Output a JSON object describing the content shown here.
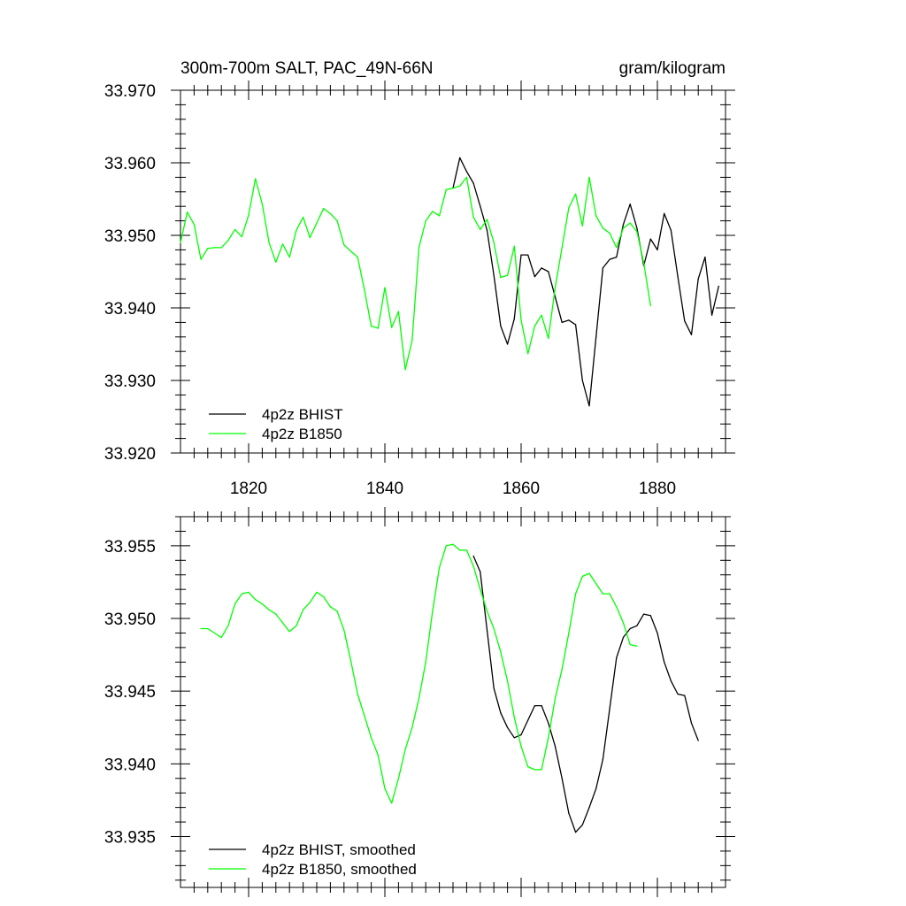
{
  "figure": {
    "title_left": "300m-700m SALT, PAC_49N-66N",
    "title_right": "gram/kilogram"
  },
  "chart_data": [
    {
      "type": "line",
      "xlim": [
        1810,
        1890
      ],
      "ylim": [
        33.92,
        33.97
      ],
      "x_ticks": [
        1820,
        1840,
        1860,
        1880
      ],
      "y_ticks": [
        33.92,
        33.93,
        33.94,
        33.95,
        33.96,
        33.97
      ],
      "x_tick_labels": [
        "1820",
        "1840",
        "1860",
        "1880"
      ],
      "y_tick_labels": [
        "33.920",
        "33.930",
        "33.940",
        "33.950",
        "33.960",
        "33.970"
      ],
      "grid": false,
      "legend_position": "bottom-left",
      "series": [
        {
          "name": "4p2z BHIST",
          "color": "#000000",
          "x": [
            1850,
            1851,
            1852,
            1853,
            1854,
            1855,
            1856,
            1857,
            1858,
            1859,
            1860,
            1861,
            1862,
            1863,
            1864,
            1865,
            1866,
            1867,
            1868,
            1869,
            1870,
            1871,
            1872,
            1873,
            1874,
            1875,
            1876,
            1877,
            1878,
            1879,
            1880,
            1881,
            1882,
            1883,
            1884,
            1885,
            1886,
            1887,
            1888,
            1889
          ],
          "y": [
            33.9565,
            33.9607,
            33.9588,
            33.9572,
            33.954,
            33.9507,
            33.9445,
            33.9375,
            33.935,
            33.9385,
            33.9473,
            33.9473,
            33.9443,
            33.9455,
            33.945,
            33.9415,
            33.938,
            33.9383,
            33.9377,
            33.93,
            33.9265,
            33.936,
            33.9455,
            33.9467,
            33.947,
            33.9515,
            33.9543,
            33.951,
            33.9458,
            33.9495,
            33.948,
            33.953,
            33.9507,
            33.9443,
            33.9382,
            33.9363,
            33.944,
            33.947,
            33.939,
            33.943
          ]
        },
        {
          "name": "4p2z B1850",
          "color": "#00ff00",
          "x": [
            1810,
            1811,
            1812,
            1813,
            1814,
            1815,
            1816,
            1817,
            1818,
            1819,
            1820,
            1821,
            1822,
            1823,
            1824,
            1825,
            1826,
            1827,
            1828,
            1829,
            1830,
            1831,
            1832,
            1833,
            1834,
            1835,
            1836,
            1837,
            1838,
            1839,
            1840,
            1841,
            1842,
            1843,
            1844,
            1845,
            1846,
            1847,
            1848,
            1849,
            1850,
            1851,
            1852,
            1853,
            1854,
            1855,
            1856,
            1857,
            1858,
            1859,
            1860,
            1861,
            1862,
            1863,
            1864,
            1865,
            1866,
            1867,
            1868,
            1869,
            1870,
            1871,
            1872,
            1873,
            1874,
            1875,
            1876,
            1877,
            1878,
            1879
          ],
          "y": [
            33.949,
            33.9532,
            33.9515,
            33.9467,
            33.9482,
            33.9483,
            33.9483,
            33.9493,
            33.9508,
            33.9498,
            33.9528,
            33.9578,
            33.9543,
            33.949,
            33.9463,
            33.9488,
            33.947,
            33.9507,
            33.9525,
            33.9497,
            33.9517,
            33.9537,
            33.953,
            33.952,
            33.9487,
            33.9478,
            33.947,
            33.9425,
            33.9375,
            33.9372,
            33.9428,
            33.9373,
            33.9395,
            33.9315,
            33.9355,
            33.9483,
            33.952,
            33.9533,
            33.9527,
            33.9563,
            33.9565,
            33.9568,
            33.958,
            33.9525,
            33.9508,
            33.9522,
            33.949,
            33.9442,
            33.9445,
            33.9485,
            33.9383,
            33.9337,
            33.9375,
            33.939,
            33.9358,
            33.9428,
            33.9483,
            33.9538,
            33.9557,
            33.9513,
            33.958,
            33.9527,
            33.951,
            33.9503,
            33.9483,
            33.951,
            33.9517,
            33.9505,
            33.9462,
            33.9403
          ]
        }
      ]
    },
    {
      "type": "line",
      "xlim": [
        1810,
        1890
      ],
      "ylim": [
        33.9315,
        33.957
      ],
      "x_ticks": [
        1820,
        1840,
        1860,
        1880
      ],
      "y_ticks": [
        33.935,
        33.94,
        33.945,
        33.95,
        33.955
      ],
      "x_tick_labels": [],
      "y_tick_labels": [
        "33.935",
        "33.940",
        "33.945",
        "33.950",
        "33.955"
      ],
      "grid": false,
      "legend_position": "bottom-left",
      "series": [
        {
          "name": "4p2z BHIST, smoothed",
          "color": "#000000",
          "x": [
            1853,
            1854,
            1855,
            1856,
            1857,
            1858,
            1859,
            1860,
            1861,
            1862,
            1863,
            1864,
            1865,
            1866,
            1867,
            1868,
            1869,
            1870,
            1871,
            1872,
            1873,
            1874,
            1875,
            1876,
            1877,
            1878,
            1879,
            1880,
            1881,
            1882,
            1883,
            1884,
            1885,
            1886
          ],
          "y": [
            33.9543,
            33.9532,
            33.9492,
            33.9452,
            33.9435,
            33.9425,
            33.9418,
            33.942,
            33.943,
            33.944,
            33.944,
            33.9428,
            33.9412,
            33.939,
            33.9366,
            33.9353,
            33.9358,
            33.937,
            33.9383,
            33.9403,
            33.9438,
            33.9473,
            33.9487,
            33.9493,
            33.9495,
            33.9503,
            33.9502,
            33.949,
            33.947,
            33.9457,
            33.9448,
            33.9447,
            33.9428,
            33.9416
          ]
        },
        {
          "name": "4p2z B1850, smoothed",
          "color": "#00ff00",
          "x": [
            1813,
            1814,
            1815,
            1816,
            1817,
            1818,
            1819,
            1820,
            1821,
            1822,
            1823,
            1824,
            1825,
            1826,
            1827,
            1828,
            1829,
            1830,
            1831,
            1832,
            1833,
            1834,
            1835,
            1836,
            1837,
            1838,
            1839,
            1840,
            1841,
            1842,
            1843,
            1844,
            1845,
            1846,
            1847,
            1848,
            1849,
            1850,
            1851,
            1852,
            1853,
            1854,
            1855,
            1856,
            1857,
            1858,
            1859,
            1860,
            1861,
            1862,
            1863,
            1864,
            1865,
            1866,
            1867,
            1868,
            1869,
            1870,
            1871,
            1872,
            1873,
            1874,
            1875,
            1876,
            1877
          ],
          "y": [
            33.9493,
            33.9493,
            33.949,
            33.9487,
            33.9495,
            33.951,
            33.9517,
            33.9518,
            33.9513,
            33.951,
            33.9506,
            33.9503,
            33.9497,
            33.9491,
            33.9495,
            33.9506,
            33.9511,
            33.9518,
            33.9515,
            33.9508,
            33.9505,
            33.9492,
            33.9471,
            33.9448,
            33.9433,
            33.9418,
            33.9406,
            33.9383,
            33.9373,
            33.939,
            33.941,
            33.9425,
            33.9445,
            33.947,
            33.9505,
            33.9535,
            33.955,
            33.9551,
            33.9547,
            33.9547,
            33.9536,
            33.952,
            33.9505,
            33.9493,
            33.9477,
            33.9457,
            33.9432,
            33.9412,
            33.9398,
            33.9396,
            33.9396,
            33.9418,
            33.9445,
            33.9465,
            33.949,
            33.9517,
            33.9529,
            33.9531,
            33.9524,
            33.9517,
            33.9517,
            33.9508,
            33.9497,
            33.9482,
            33.9481
          ]
        }
      ]
    }
  ]
}
